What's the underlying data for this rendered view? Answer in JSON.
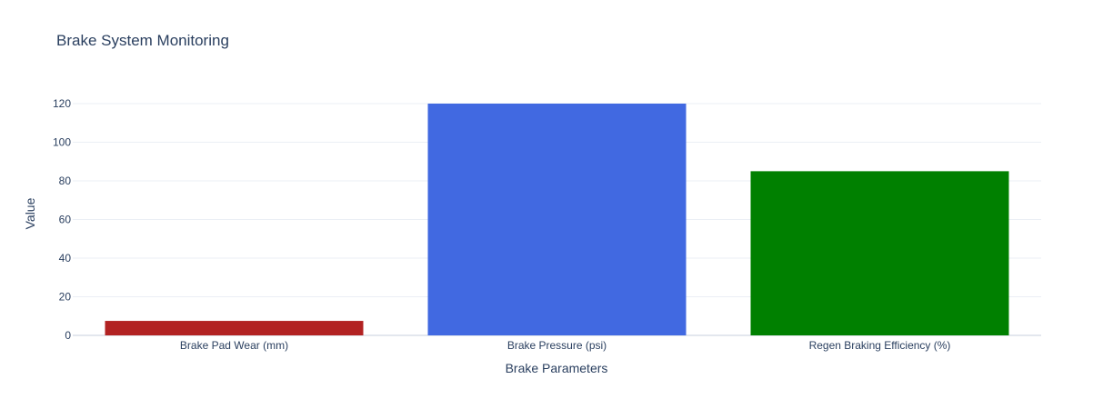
{
  "chart_data": {
    "type": "bar",
    "title": "Brake System Monitoring",
    "xlabel": "Brake Parameters",
    "ylabel": "Value",
    "categories": [
      "Brake Pad Wear (mm)",
      "Brake Pressure (psi)",
      "Regen Braking Efficiency (%)"
    ],
    "values": [
      7.5,
      120,
      85
    ],
    "colors": [
      "#b22222",
      "#4169e1",
      "#008000"
    ],
    "ylim": [
      0,
      120
    ],
    "yticks": [
      0,
      20,
      40,
      60,
      80,
      100,
      120
    ],
    "grid": true,
    "legend": false
  }
}
